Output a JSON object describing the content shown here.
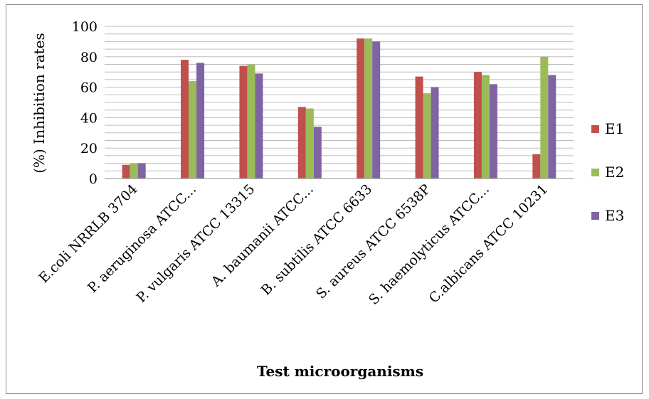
{
  "chart_data": {
    "type": "bar",
    "title": "",
    "xlabel": "Test microorganisms",
    "ylabel": "(%) Inhibition rates",
    "ylim": [
      0,
      100
    ],
    "yticks": [
      0,
      20,
      40,
      60,
      80,
      100
    ],
    "grid": true,
    "legend_position": "right",
    "categories": [
      "E.coli NRRLB 3704",
      "P. aeruginosa ATCC...",
      "P. vulgaris ATCC 13315",
      "A. baumanii ATCC...",
      "B. subtilis ATCC 6633",
      "S. aureus ATCC 6538P",
      "S. haemolyticus ATCC...",
      "C.albicans ATCC 10231"
    ],
    "series": [
      {
        "name": "E1",
        "color": "#c0504d",
        "values": [
          9,
          78,
          74,
          47,
          92,
          67,
          70,
          16
        ]
      },
      {
        "name": "E2",
        "color": "#9bbb59",
        "values": [
          10,
          64,
          75,
          46,
          92,
          56,
          68,
          80
        ]
      },
      {
        "name": "E3",
        "color": "#8064a2",
        "values": [
          10,
          76,
          69,
          34,
          90,
          60,
          62,
          68
        ]
      }
    ]
  }
}
